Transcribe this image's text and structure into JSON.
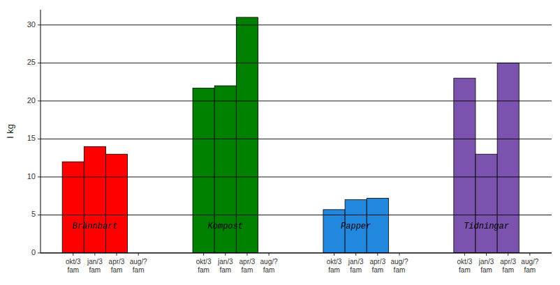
{
  "chart_data": {
    "type": "bar",
    "categories": [
      "okt/3\nfam",
      "jan/3\nfam",
      "apr/3\nfam",
      "aug/?\nfam"
    ],
    "series": [
      {
        "color": "#ff0000",
        "values": [
          12,
          14,
          13,
          0
        ]
      },
      {
        "color": "#008000",
        "values": [
          21.7,
          22,
          31,
          0
        ]
      },
      {
        "color": "#2288DD",
        "values": [
          5.7,
          7,
          7.2,
          0
        ]
      },
      {
        "color": "#7B52AE",
        "values": [
          23,
          13,
          25,
          0
        ]
      }
    ],
    "annotations": [
      {
        "text": "Brännbart",
        "y": 3.5
      },
      {
        "text": "Kompost",
        "y": 3.5
      },
      {
        "text": "Papper",
        "y": 3.5
      },
      {
        "text": "Tidningar",
        "y": 3.5
      }
    ],
    "ylabel": "I kg",
    "ylim": [
      0,
      32
    ],
    "yticks": [
      0,
      5,
      10,
      15,
      20,
      25,
      30
    ],
    "grid": true
  }
}
